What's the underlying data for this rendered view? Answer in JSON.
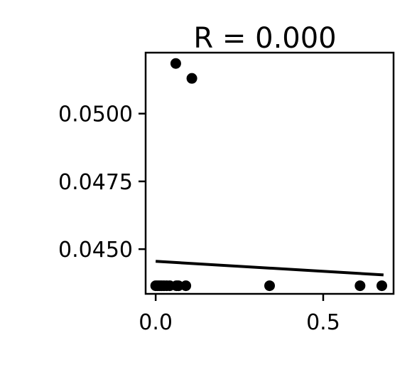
{
  "chart_data": {
    "type": "scatter",
    "title": "R = 0.000",
    "xlabel": "",
    "ylabel": "",
    "xlim": [
      -0.03,
      0.71
    ],
    "ylim": [
      0.04335,
      0.05225
    ],
    "x_ticks": [
      {
        "value": 0.0,
        "label": "0.0"
      },
      {
        "value": 0.5,
        "label": "0.5"
      }
    ],
    "y_ticks": [
      {
        "value": 0.045,
        "label": "0.0450"
      },
      {
        "value": 0.0475,
        "label": "0.0475"
      },
      {
        "value": 0.05,
        "label": "0.0500"
      }
    ],
    "grid": false,
    "legend": "none",
    "point_color": "#000000",
    "points": [
      {
        "x": 0.0,
        "y": 0.04365
      },
      {
        "x": 0.006,
        "y": 0.04365
      },
      {
        "x": 0.012,
        "y": 0.04365
      },
      {
        "x": 0.018,
        "y": 0.04365
      },
      {
        "x": 0.025,
        "y": 0.04365
      },
      {
        "x": 0.033,
        "y": 0.04365
      },
      {
        "x": 0.042,
        "y": 0.04365
      },
      {
        "x": 0.062,
        "y": 0.04365
      },
      {
        "x": 0.068,
        "y": 0.04365
      },
      {
        "x": 0.09,
        "y": 0.04365
      },
      {
        "x": 0.34,
        "y": 0.04365
      },
      {
        "x": 0.61,
        "y": 0.04365
      },
      {
        "x": 0.675,
        "y": 0.04365
      },
      {
        "x": 0.06,
        "y": 0.05185
      },
      {
        "x": 0.108,
        "y": 0.0513
      }
    ],
    "trend_line": {
      "x": [
        0.0,
        0.68
      ],
      "y": [
        0.04455,
        0.04405
      ],
      "color": "#000000"
    }
  }
}
